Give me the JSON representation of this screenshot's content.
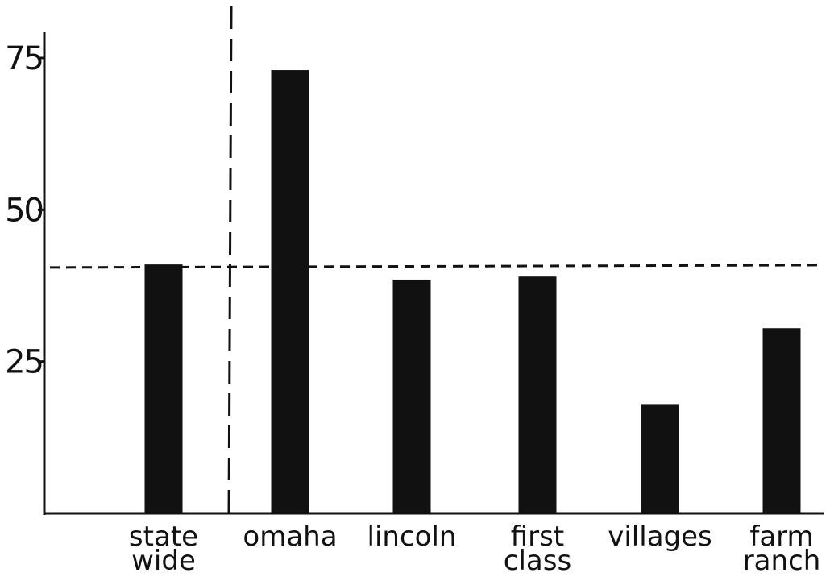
{
  "chart_data": {
    "type": "bar",
    "categories": [
      [
        "state",
        "wide"
      ],
      [
        "omaha"
      ],
      [
        "lincoln"
      ],
      [
        "first",
        "class"
      ],
      [
        "villages"
      ],
      [
        "farm",
        "ranch"
      ]
    ],
    "values": [
      41,
      73,
      38.5,
      39,
      18,
      30.5
    ],
    "reference_line": 40.5,
    "yticks": [
      "75",
      "50",
      "25"
    ],
    "ytick_values": [
      75,
      50,
      25
    ],
    "ylim": [
      0,
      85
    ],
    "bar_color": "#111111",
    "grid": false,
    "legend": "none",
    "title": "",
    "xlabel": "",
    "ylabel": ""
  }
}
